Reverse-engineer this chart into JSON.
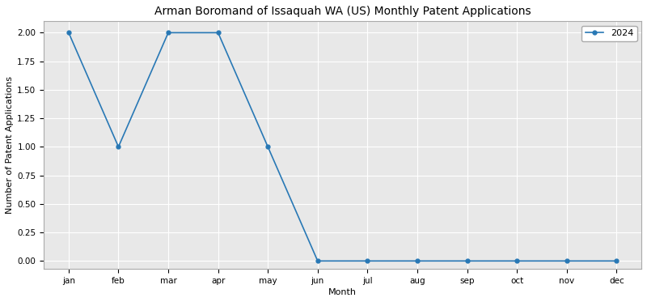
{
  "title": "Arman Boromand of Issaquah WA (US) Monthly Patent Applications",
  "xlabel": "Month",
  "ylabel": "Number of Patent Applications",
  "months": [
    "jan",
    "feb",
    "mar",
    "apr",
    "may",
    "jun",
    "jul",
    "aug",
    "sep",
    "oct",
    "nov",
    "dec"
  ],
  "series": {
    "2024": {
      "values": [
        2,
        1,
        2,
        2,
        1,
        0,
        0,
        0,
        0,
        0,
        0,
        0
      ],
      "color": "#2878b5",
      "marker": "o",
      "linewidth": 1.2,
      "markersize": 3.5
    }
  },
  "ylim": [
    -0.07,
    2.1
  ],
  "yticks": [
    0.0,
    0.25,
    0.5,
    0.75,
    1.0,
    1.25,
    1.5,
    1.75,
    2.0
  ],
  "legend_loc": "upper right",
  "grid": true,
  "plot_bg_color": "#e8e8e8",
  "figure_bg_color": "#ffffff",
  "title_fontsize": 10,
  "axis_label_fontsize": 8,
  "tick_fontsize": 7.5,
  "legend_fontsize": 8,
  "spine_color": "#aaaaaa",
  "grid_color": "#ffffff",
  "grid_linewidth": 0.8
}
